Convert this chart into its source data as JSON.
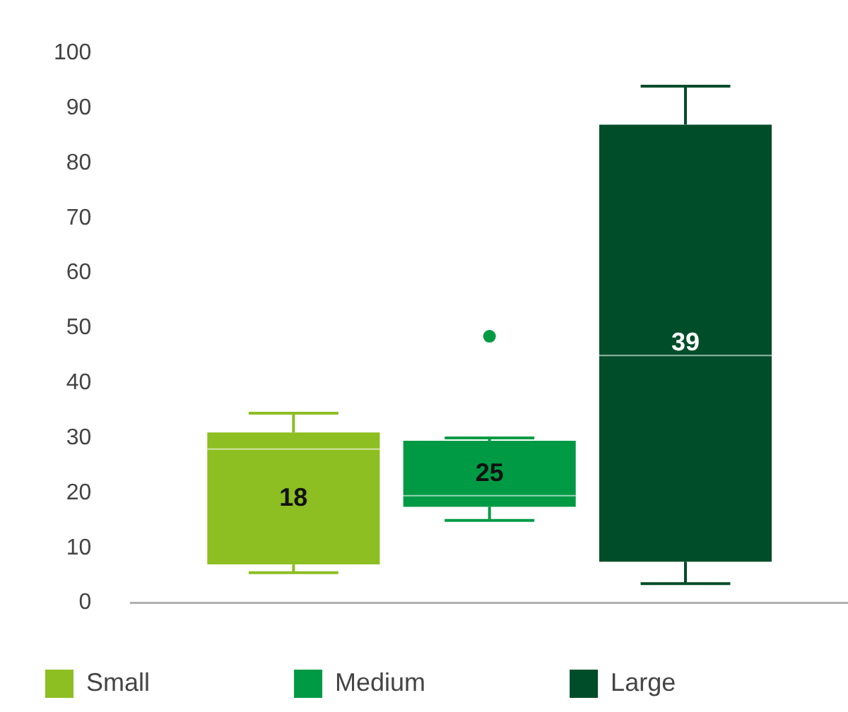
{
  "chart_data": {
    "type": "box",
    "categories": [
      null
    ],
    "series": [
      {
        "name": "Small",
        "color": "#8dbe22",
        "boxes": [
          {
            "low": 5.5,
            "q1": 7,
            "median": 28,
            "q3": 31,
            "high": 34.5
          }
        ],
        "value_labels": [
          "18"
        ]
      },
      {
        "name": "Medium",
        "color": "#009a44",
        "boxes": [
          {
            "low": 15,
            "q1": 17.5,
            "median": 19.5,
            "q3": 29.5,
            "high": 30,
            "outliers": [
              48.5
            ]
          }
        ],
        "value_labels": [
          "25"
        ]
      },
      {
        "name": "Large",
        "color": "#004d2a",
        "boxes": [
          {
            "low": 3.5,
            "q1": 7.5,
            "median": 45,
            "q3": 87,
            "high": 94
          }
        ],
        "value_labels": [
          "39"
        ]
      }
    ],
    "ylim": [
      0,
      100
    ],
    "yticks": [
      0,
      10,
      20,
      30,
      40,
      50,
      60,
      70,
      80,
      90,
      100
    ],
    "grid": false,
    "legend": "bottom left"
  }
}
